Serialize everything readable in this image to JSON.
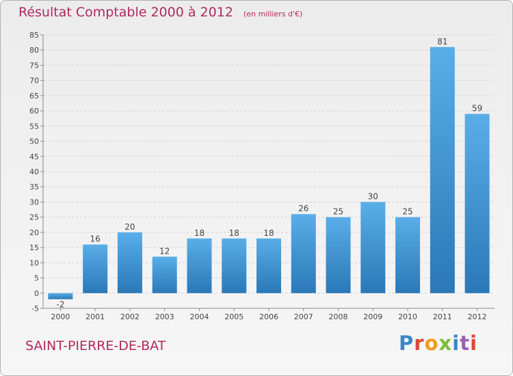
{
  "header": {
    "title": "Résultat Comptable 2000 à 2012",
    "subtitle": "(en milliers d'€)"
  },
  "footer": {
    "commune": "SAINT-PIERRE-DE-BAT",
    "logo_text": "Proxiti"
  },
  "colors": {
    "bar_light": "#5aaee8",
    "bar_dark": "#2a78b8",
    "title": "#b02a5b",
    "logo_letters": [
      "#3a86c8",
      "#e0463a",
      "#f39a1e",
      "#7cbf3a",
      "#3a86c8",
      "#9c5fb5",
      "#e0463a"
    ]
  },
  "chart_data": {
    "type": "bar",
    "categories": [
      "2000",
      "2001",
      "2002",
      "2003",
      "2004",
      "2005",
      "2006",
      "2007",
      "2008",
      "2009",
      "2010",
      "2011",
      "2012"
    ],
    "values": [
      -2,
      16,
      20,
      12,
      18,
      18,
      18,
      26,
      25,
      30,
      25,
      81,
      59
    ],
    "value_labels": [
      "-2",
      "16",
      "20",
      "12",
      "18",
      "18",
      "18",
      "26",
      "25",
      "30",
      "25",
      "81",
      "59"
    ],
    "ylim": [
      -5,
      85
    ],
    "yticks": [
      -5,
      0,
      5,
      10,
      15,
      20,
      25,
      30,
      35,
      40,
      45,
      50,
      55,
      60,
      65,
      70,
      75,
      80,
      85
    ],
    "ytick_labels": [
      "-5",
      "0",
      "5",
      "10",
      "15",
      "20",
      "25",
      "30",
      "35",
      "40",
      "45",
      "50",
      "55",
      "60",
      "65",
      "70",
      "75",
      "80",
      "85"
    ],
    "grid": "horizontal-dashed",
    "xlabel": "",
    "ylabel": ""
  }
}
